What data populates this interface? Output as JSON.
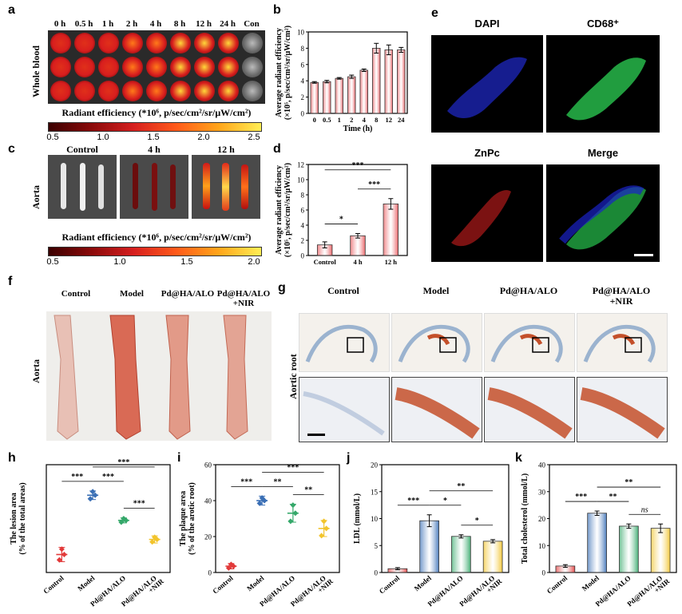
{
  "panel_letters": [
    "a",
    "b",
    "c",
    "d",
    "e",
    "f",
    "g",
    "h",
    "i",
    "j",
    "k"
  ],
  "panel_a": {
    "time_labels": [
      "0 h",
      "0.5 h",
      "1 h",
      "2 h",
      "4 h",
      "8 h",
      "12 h",
      "24 h",
      "Con"
    ],
    "side_label": "Whole blood",
    "colorbar_title": "Radiant efficiency (*10⁶, p/sec/cm²/sr/μW/cm²)",
    "colorbar_ticks": [
      "0.5",
      "1.0",
      "1.5",
      "2.0",
      "2.5"
    ],
    "well_intensity": [
      0.25,
      0.3,
      0.35,
      0.45,
      0.55,
      0.9,
      0.85,
      0.85,
      0.0
    ]
  },
  "panel_c": {
    "group_labels": [
      "Control",
      "4 h",
      "12 h"
    ],
    "side_label": "Aorta",
    "colorbar_title": "Radiant efficiency (*10⁶, p/sec/cm²/sr/μW/cm²)",
    "colorbar_ticks": [
      "0.5",
      "1.0",
      "1.5",
      "2.0"
    ]
  },
  "panel_e": {
    "titles": [
      "DAPI",
      "CD68⁺",
      "ZnPc",
      "Merge"
    ]
  },
  "panel_f": {
    "group_labels": [
      "Control",
      "Model",
      "Pd@HA/ALO",
      "Pd@HA/ALO\n+NIR"
    ],
    "side_label": "Aorta"
  },
  "panel_g": {
    "group_labels": [
      "Control",
      "Model",
      "Pd@HA/ALO",
      "Pd@HA/ALO\n+NIR"
    ],
    "side_label": "Aortic root"
  },
  "chart_data": [
    {
      "id": "b",
      "type": "bar",
      "categories": [
        "0",
        "0.5",
        "1",
        "2",
        "4",
        "8",
        "12",
        "24"
      ],
      "values": [
        3.8,
        3.9,
        4.3,
        4.5,
        5.3,
        8.0,
        7.8,
        7.8
      ],
      "errors": [
        0.1,
        0.15,
        0.1,
        0.2,
        0.15,
        0.6,
        0.6,
        0.3
      ],
      "xlabel": "Time (h)",
      "ylabel": "Average radiant efficiency",
      "ylabel2": "(×10⁵, p/sec/cm²/sr/μW/cm²)",
      "ylim": [
        0,
        10
      ],
      "yticks": [
        "0",
        "2",
        "4",
        "6",
        "8",
        "10"
      ],
      "color": "#e8565a"
    },
    {
      "id": "d",
      "type": "bar",
      "categories": [
        "Control",
        "4 h",
        "12 h"
      ],
      "values": [
        1.4,
        2.6,
        6.8
      ],
      "errors": [
        0.4,
        0.3,
        0.7
      ],
      "ylabel": "Average radiant efficiency",
      "ylabel2": "(×10⁵, p/sec/cm²/sr/μW/cm²)",
      "ylim": [
        0,
        12
      ],
      "yticks": [
        "0",
        "2",
        "4",
        "6",
        "8",
        "10",
        "12"
      ],
      "significance": [
        {
          "from": 0,
          "to": 1,
          "label": "*"
        },
        {
          "from": 1,
          "to": 2,
          "label": "***"
        },
        {
          "from": 0,
          "to": 2,
          "label": "***"
        }
      ],
      "color": "#e8565a"
    },
    {
      "id": "h",
      "type": "scatter",
      "categories": [
        "Control",
        "Model",
        "Pd@HA/ALO",
        "Pd@HA/ALO\n+NIR"
      ],
      "means": [
        5.0,
        21.5,
        14.5,
        9.2
      ],
      "errors": [
        2.0,
        1.2,
        0.7,
        1.0
      ],
      "points": [
        [
          3.5,
          6.5,
          5.0
        ],
        [
          20.5,
          22.5,
          21.5
        ],
        [
          14.0,
          15.0,
          14.5
        ],
        [
          8.5,
          9.8,
          9.2
        ]
      ],
      "colors": [
        "#e23a3a",
        "#3a6fb5",
        "#35a86a",
        "#f2c42c"
      ],
      "ylabel": "The lesion area",
      "ylabel2": "(% of the total areas)",
      "ylim": [
        0,
        30
      ],
      "yticks": [],
      "significance": [
        {
          "from": 0,
          "to": 1,
          "label": "***"
        },
        {
          "from": 1,
          "to": 2,
          "label": "***"
        },
        {
          "from": 2,
          "to": 3,
          "label": "***"
        },
        {
          "from": 1,
          "to": 3,
          "label": "***"
        }
      ]
    },
    {
      "id": "i",
      "type": "scatter",
      "categories": [
        "Control",
        "Model",
        "Pd@HA/ALO",
        "Pd@HA/ALO\n+NIR"
      ],
      "means": [
        3.5,
        40.0,
        33.0,
        24.5
      ],
      "errors": [
        1.5,
        2.5,
        5.0,
        4.5
      ],
      "points": [
        [
          2.5,
          4.5,
          3.5
        ],
        [
          38.5,
          41.5,
          40.0
        ],
        [
          28.5,
          37.5,
          33.0
        ],
        [
          20.5,
          28.5,
          24.5
        ]
      ],
      "colors": [
        "#e23a3a",
        "#3a6fb5",
        "#35a86a",
        "#f2c42c"
      ],
      "ylabel": "The plaque area",
      "ylabel2": "(% of the arotic root)",
      "ylim": [
        0,
        60
      ],
      "yticks": [
        "0",
        "20",
        "40",
        "60"
      ],
      "significance": [
        {
          "from": 0,
          "to": 1,
          "label": "***"
        },
        {
          "from": 1,
          "to": 2,
          "label": "**"
        },
        {
          "from": 2,
          "to": 3,
          "label": "**"
        },
        {
          "from": 1,
          "to": 3,
          "label": "***"
        }
      ]
    },
    {
      "id": "j",
      "type": "bar",
      "categories": [
        "Control",
        "Model",
        "Pd@HA/ALO",
        "Pd@HA/ALO\n+NIR"
      ],
      "values": [
        0.7,
        9.6,
        6.7,
        5.8
      ],
      "errors": [
        0.2,
        1.1,
        0.3,
        0.3
      ],
      "colors": [
        "#e23a3a",
        "#3a6fb5",
        "#35a86a",
        "#f2c42c"
      ],
      "ylabel": "LDL (mmol/L)",
      "ylim": [
        0,
        20
      ],
      "yticks": [
        "0",
        "5",
        "10",
        "15",
        "20"
      ],
      "significance": [
        {
          "from": 0,
          "to": 1,
          "label": "***"
        },
        {
          "from": 1,
          "to": 2,
          "label": "*"
        },
        {
          "from": 2,
          "to": 3,
          "label": "*"
        },
        {
          "from": 1,
          "to": 3,
          "label": "**"
        }
      ]
    },
    {
      "id": "k",
      "type": "bar",
      "categories": [
        "Control",
        "Model",
        "Pd@HA/ALO",
        "Pd@HA/ALO\n+NIR"
      ],
      "values": [
        2.4,
        22.0,
        17.2,
        16.4
      ],
      "errors": [
        0.5,
        0.8,
        0.8,
        1.6
      ],
      "colors": [
        "#e23a3a",
        "#3a6fb5",
        "#35a86a",
        "#f2c42c"
      ],
      "ylabel": "Total cholesterol (mmol/L)",
      "ylim": [
        0,
        40
      ],
      "yticks": [
        "0",
        "10",
        "20",
        "30",
        "40"
      ],
      "significance": [
        {
          "from": 0,
          "to": 1,
          "label": "***"
        },
        {
          "from": 1,
          "to": 2,
          "label": "**"
        },
        {
          "from": 2,
          "to": 3,
          "label": "ns"
        },
        {
          "from": 1,
          "to": 3,
          "label": "**"
        }
      ]
    }
  ]
}
